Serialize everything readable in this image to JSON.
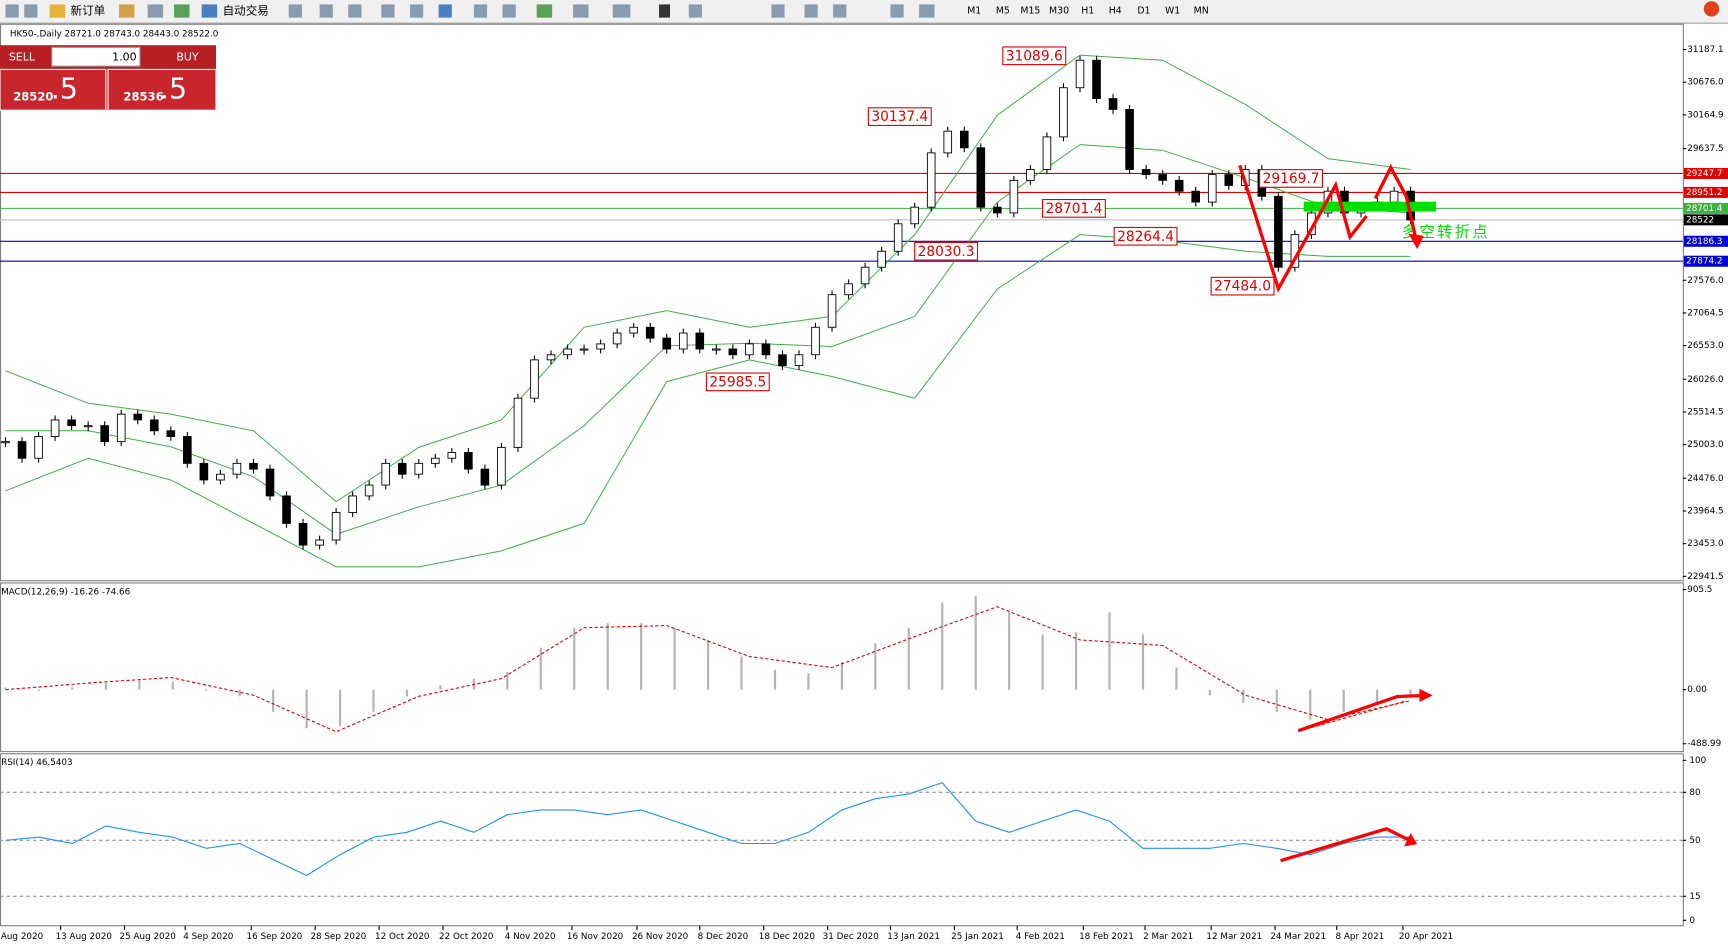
{
  "toolbar": {
    "new_order": "新订单",
    "auto_trading": "自动交易",
    "timeframes": [
      "M1",
      "M5",
      "M15",
      "M30",
      "H1",
      "H4",
      "D1",
      "W1",
      "MN"
    ]
  },
  "trade_panel": {
    "sell": "SELL",
    "buy": "BUY",
    "volume": "1.00",
    "sell_price": "28520",
    "sell_price_fraction": ".5",
    "buy_price": "28536",
    "buy_price_fraction": ".5"
  },
  "chart_data": [
    {
      "type": "candlestick",
      "title": "HK50-,Daily 28721.0 28743.0 28443.0 28522.0",
      "up_color": "#ffffff",
      "down_color": "#000000",
      "closes": [
        25050,
        24790,
        25130,
        25390,
        25300,
        25300,
        25050,
        25480,
        25390,
        25220,
        25130,
        24710,
        24450,
        24540,
        24710,
        24620,
        24200,
        23770,
        23430,
        23510,
        23940,
        24200,
        24370,
        24710,
        24540,
        24710,
        24790,
        24880,
        24620,
        24370,
        24960,
        25730,
        26330,
        26410,
        26500,
        26500,
        26580,
        26750,
        26840,
        26670,
        26500,
        26750,
        26500,
        26500,
        26410,
        26580,
        26410,
        26240,
        26410,
        26840,
        27350,
        27520,
        27780,
        28030,
        28460,
        28720,
        29570,
        29910,
        29650,
        28720,
        28630,
        29140,
        29310,
        29820,
        30590,
        31020,
        30420,
        30250,
        29310,
        29230,
        29140,
        28970,
        28800,
        29230,
        29060,
        29310,
        28890,
        27780,
        28290,
        28630,
        28970,
        28630,
        28720,
        28800,
        28970,
        28520
      ],
      "bollinger": {
        "color": "#3cb043",
        "upper": [
          26160,
          25650,
          25480,
          25220,
          24110,
          24960,
          25390,
          26840,
          27100,
          26840,
          27010,
          28290,
          30160,
          31100,
          31020,
          30330,
          29480,
          29310
        ],
        "middle": [
          25220,
          25220,
          24970,
          24500,
          23600,
          24030,
          24370,
          25300,
          26550,
          26590,
          26540,
          27010,
          28800,
          29700,
          29610,
          29180,
          28720,
          28630
        ],
        "lower": [
          24280,
          24790,
          24450,
          23770,
          23090,
          23090,
          23340,
          23770,
          25990,
          26330,
          26070,
          25730,
          27440,
          28290,
          28200,
          28030,
          27950,
          27950
        ]
      },
      "levels": [
        {
          "value": 29247.7,
          "color": "#e00000"
        },
        {
          "value": 28951.2,
          "color": "#e00000"
        },
        {
          "value": 28701.4,
          "color": "#3cb043"
        },
        {
          "value": 28522,
          "label": "28522.0",
          "color": "#000000"
        },
        {
          "value": 28186.3,
          "color": "#0000d0"
        },
        {
          "value": 27874.2,
          "color": "#0000d0"
        }
      ],
      "annotations": [
        31089.6,
        30137.4,
        28701.4,
        28030.3,
        25985.5,
        28264.4,
        29169.7,
        {
          "value": 27484,
          "label": "27484.0"
        }
      ],
      "note": "多空转折点",
      "ylim": [
        22872,
        31549
      ],
      "yticks": [
        31187.1,
        {
          "value": 30676,
          "label": "30676.0"
        },
        30164.9,
        29637.5,
        {
          "value": 27576,
          "label": "27576.0"
        },
        27064.5,
        {
          "value": 26553,
          "label": "26553.0"
        },
        {
          "value": 26026,
          "label": "26026.0"
        },
        25514.5,
        {
          "value": 25003,
          "label": "25003.0"
        },
        {
          "value": 24476,
          "label": "24476.0"
        },
        23964.5,
        {
          "value": 23453,
          "label": "23453.0"
        },
        22941.5
      ],
      "x_labels": [
        "Aug 2020",
        "13 Aug 2020",
        "25 Aug 2020",
        "4 Sep 2020",
        "16 Sep 2020",
        "28 Sep 2020",
        "12 Oct 2020",
        "22 Oct 2020",
        "4 Nov 2020",
        "16 Nov 2020",
        "26 Nov 2020",
        "8 Dec 2020",
        "18 Dec 2020",
        "31 Dec 2020",
        "13 Jan 2021",
        "25 Jan 2021",
        "4 Feb 2021",
        "18 Feb 2021",
        "2 Mar 2021",
        "12 Mar 2021",
        "24 Mar 2021",
        "8 Apr 2021",
        "20 Apr 2021"
      ]
    },
    {
      "type": "macd",
      "title": "MACD(12,26,9) -16.26 -74.66",
      "histogram_color": "#b4b4b4",
      "signal_color": "#e00000",
      "histogram": [
        20,
        -10,
        20,
        60,
        90,
        70,
        -10,
        -60,
        -200,
        -350,
        -330,
        -200,
        -60,
        40,
        100,
        160,
        380,
        560,
        600,
        600,
        560,
        450,
        300,
        180,
        150,
        250,
        420,
        560,
        790,
        850,
        700,
        500,
        520,
        700,
        500,
        200,
        -50,
        -120,
        -200,
        -270,
        -200,
        -120,
        -60
      ],
      "signal": [
        0,
        60,
        110,
        -50,
        -380,
        -60,
        100,
        560,
        580,
        300,
        200,
        480,
        750,
        450,
        400,
        -50,
        -270,
        -100
      ],
      "ylim": [
        -560,
        955
      ],
      "yticks": [
        905.5,
        {
          "value": 0,
          "label": "0.00"
        },
        -488.99
      ]
    },
    {
      "type": "rsi",
      "title": "RSI(14) 46.5403",
      "color": "#1e90ff",
      "values": [
        50,
        52,
        48,
        59,
        55,
        52,
        45,
        48,
        38,
        28,
        41,
        52,
        55,
        62,
        55,
        66,
        69,
        69,
        66,
        69,
        62,
        55,
        48,
        48,
        55,
        69,
        76,
        79,
        86,
        62,
        55,
        62,
        69,
        62,
        45,
        45,
        45,
        48,
        45,
        41,
        48,
        52,
        52
      ],
      "ylim": [
        -3.4,
        103.4
      ],
      "yticks": [
        100,
        80,
        50,
        15,
        0
      ],
      "dashed_levels": [
        80,
        50,
        15
      ]
    }
  ]
}
